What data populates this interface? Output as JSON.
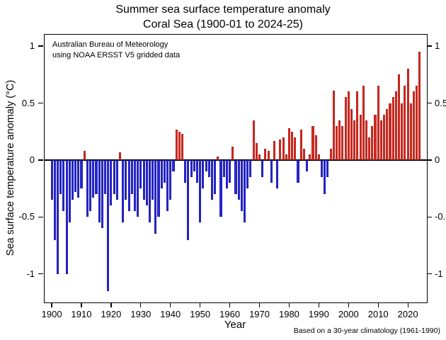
{
  "header": {
    "title": "Summer sea surface temperature anomaly",
    "subtitle": "Coral Sea (1900-01 to 2024-25)"
  },
  "annotation": {
    "line1": "Australian Bureau of Meteorology",
    "line2": "using NOAA ERSST V5 gridded data"
  },
  "footnote": "Based on a 30-year climatology (1961-1990)",
  "chart_data": {
    "type": "bar",
    "title": "Summer sea surface temperature anomaly",
    "subtitle": "Coral Sea (1900-01 to 2024-25)",
    "xlabel": "Year",
    "ylabel": "Sea surface temperature anomaly (°C)",
    "ylim": [
      -1.25,
      1.1
    ],
    "yticks": [
      1,
      0.5,
      0,
      -0.5,
      -1
    ],
    "ytick_labels": [
      "1",
      "0.5",
      "0",
      "-0.5",
      "-1"
    ],
    "xticks": [
      1900,
      1910,
      1920,
      1930,
      1940,
      1950,
      1960,
      1970,
      1980,
      1990,
      2000,
      2010,
      2020
    ],
    "grid": false,
    "legend": false,
    "colors": {
      "positive": "#dd2a20",
      "negative": "#2727d8"
    },
    "years": [
      1900,
      1901,
      1902,
      1903,
      1904,
      1905,
      1906,
      1907,
      1908,
      1909,
      1910,
      1911,
      1912,
      1913,
      1914,
      1915,
      1916,
      1917,
      1918,
      1919,
      1920,
      1921,
      1922,
      1923,
      1924,
      1925,
      1926,
      1927,
      1928,
      1929,
      1930,
      1931,
      1932,
      1933,
      1934,
      1935,
      1936,
      1937,
      1938,
      1939,
      1940,
      1941,
      1942,
      1943,
      1944,
      1945,
      1946,
      1947,
      1948,
      1949,
      1950,
      1951,
      1952,
      1953,
      1954,
      1955,
      1956,
      1957,
      1958,
      1959,
      1960,
      1961,
      1962,
      1963,
      1964,
      1965,
      1966,
      1967,
      1968,
      1969,
      1970,
      1971,
      1972,
      1973,
      1974,
      1975,
      1976,
      1977,
      1978,
      1979,
      1980,
      1981,
      1982,
      1983,
      1984,
      1985,
      1986,
      1987,
      1988,
      1989,
      1990,
      1991,
      1992,
      1993,
      1994,
      1995,
      1996,
      1997,
      1998,
      1999,
      2000,
      2001,
      2002,
      2003,
      2004,
      2005,
      2006,
      2007,
      2008,
      2009,
      2010,
      2011,
      2012,
      2013,
      2014,
      2015,
      2016,
      2017,
      2018,
      2019,
      2020,
      2021,
      2022,
      2023,
      2024
    ],
    "values": [
      -0.35,
      -0.7,
      -1.0,
      -0.3,
      -0.45,
      -1.0,
      -0.55,
      -0.35,
      -0.28,
      -0.33,
      -0.25,
      0.08,
      -0.5,
      -0.45,
      -0.33,
      -0.3,
      -0.55,
      -0.6,
      -0.3,
      -1.15,
      -0.4,
      -0.3,
      -0.35,
      0.07,
      -0.55,
      -0.35,
      -0.45,
      -0.3,
      -0.45,
      -0.5,
      -0.25,
      -0.35,
      -0.4,
      -0.55,
      -0.35,
      -0.65,
      -0.5,
      -0.25,
      -0.2,
      -0.45,
      -0.35,
      -0.1,
      0.27,
      0.25,
      0.23,
      -0.2,
      -0.7,
      -0.15,
      -0.1,
      -0.2,
      -0.55,
      -0.25,
      -0.1,
      -0.15,
      -0.35,
      -0.3,
      0.03,
      -0.5,
      -0.15,
      -0.25,
      -0.2,
      0.12,
      -0.3,
      -0.35,
      -0.45,
      -0.55,
      -0.25,
      -0.15,
      0.35,
      0.15,
      0.05,
      -0.15,
      0.1,
      0.08,
      -0.2,
      0.17,
      -0.25,
      0.18,
      0.2,
      0.05,
      0.28,
      0.25,
      0.2,
      -0.2,
      0.27,
      0.1,
      -0.1,
      0.05,
      0.3,
      0.22,
      0.05,
      -0.15,
      -0.3,
      -0.15,
      0.1,
      0.61,
      0.3,
      0.35,
      0.3,
      0.55,
      0.6,
      0.45,
      0.35,
      0.6,
      0.4,
      0.65,
      0.35,
      0.2,
      0.3,
      0.4,
      0.65,
      0.35,
      0.4,
      0.45,
      0.5,
      0.55,
      0.6,
      0.75,
      0.5,
      0.65,
      0.8,
      0.5,
      0.6,
      0.65,
      0.95
    ]
  }
}
